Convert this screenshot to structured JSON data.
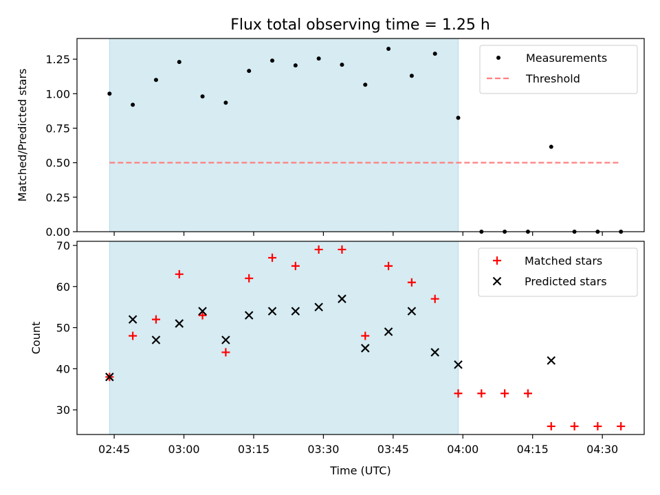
{
  "chart_data": [
    {
      "type": "scatter",
      "title": "Flux total observing time = 1.25 h",
      "xlabel": "",
      "ylabel": "Matched/Predicted stars",
      "ylim": [
        0,
        1.4
      ],
      "yticks": [
        "0.00",
        "0.25",
        "0.50",
        "0.75",
        "1.00",
        "1.25"
      ],
      "ytick_values": [
        0,
        0.25,
        0.5,
        0.75,
        1.0,
        1.25
      ],
      "xlim": [
        "02:37",
        "04:39"
      ],
      "legend_position": "upper right",
      "shaded_span": [
        "02:44",
        "03:59"
      ],
      "shaded_color": "#add8e6",
      "threshold": {
        "name": "Threshold",
        "value": 0.5,
        "x_range": [
          "02:44",
          "04:34"
        ],
        "color": "#ff7f7f"
      },
      "series": [
        {
          "name": "Measurements",
          "color": "#000000",
          "marker": "dot",
          "x": [
            "02:44",
            "02:49",
            "02:54",
            "02:59",
            "03:04",
            "03:09",
            "03:14",
            "03:19",
            "03:24",
            "03:29",
            "03:34",
            "03:39",
            "03:44",
            "03:49",
            "03:54",
            "03:59",
            "04:04",
            "04:09",
            "04:14",
            "04:19",
            "04:24",
            "04:29",
            "04:34"
          ],
          "y": [
            1.0,
            0.92,
            1.1,
            1.23,
            0.98,
            0.935,
            1.165,
            1.24,
            1.205,
            1.255,
            1.21,
            1.065,
            1.325,
            1.13,
            1.29,
            0.825,
            0,
            0,
            0,
            0.615,
            0,
            0,
            0
          ]
        }
      ]
    },
    {
      "type": "scatter",
      "title": "",
      "xlabel": "Time (UTC)",
      "ylabel": "Count",
      "ylim": [
        24,
        71
      ],
      "yticks": [
        "30",
        "40",
        "50",
        "60",
        "70"
      ],
      "ytick_values": [
        30,
        40,
        50,
        60,
        70
      ],
      "xlim": [
        "02:37",
        "04:39"
      ],
      "xticks": [
        "02:45",
        "03:00",
        "03:15",
        "03:30",
        "03:45",
        "04:00",
        "04:15",
        "04:30"
      ],
      "legend_position": "upper right",
      "shaded_span": [
        "02:44",
        "03:59"
      ],
      "shaded_color": "#add8e6",
      "series": [
        {
          "name": "Matched stars",
          "color": "#ff0000",
          "marker": "plus",
          "x": [
            "02:44",
            "02:49",
            "02:54",
            "02:59",
            "03:04",
            "03:09",
            "03:14",
            "03:19",
            "03:24",
            "03:29",
            "03:34",
            "03:39",
            "03:44",
            "03:49",
            "03:54",
            "03:59",
            "04:04",
            "04:09",
            "04:14",
            "04:19",
            "04:24",
            "04:29",
            "04:34"
          ],
          "y": [
            38,
            48,
            52,
            63,
            53,
            44,
            62,
            67,
            65,
            69,
            69,
            48,
            65,
            61,
            57,
            34,
            34,
            34,
            34,
            26,
            26,
            26,
            26
          ]
        },
        {
          "name": "Predicted stars",
          "color": "#000000",
          "marker": "x",
          "x": [
            "02:44",
            "02:49",
            "02:54",
            "02:59",
            "03:04",
            "03:09",
            "03:14",
            "03:19",
            "03:24",
            "03:29",
            "03:34",
            "03:39",
            "03:44",
            "03:49",
            "03:54",
            "03:59",
            "04:19"
          ],
          "y": [
            38,
            52,
            47,
            51,
            54,
            47,
            53,
            54,
            54,
            55,
            57,
            45,
            49,
            54,
            44,
            41,
            42
          ]
        }
      ]
    }
  ]
}
